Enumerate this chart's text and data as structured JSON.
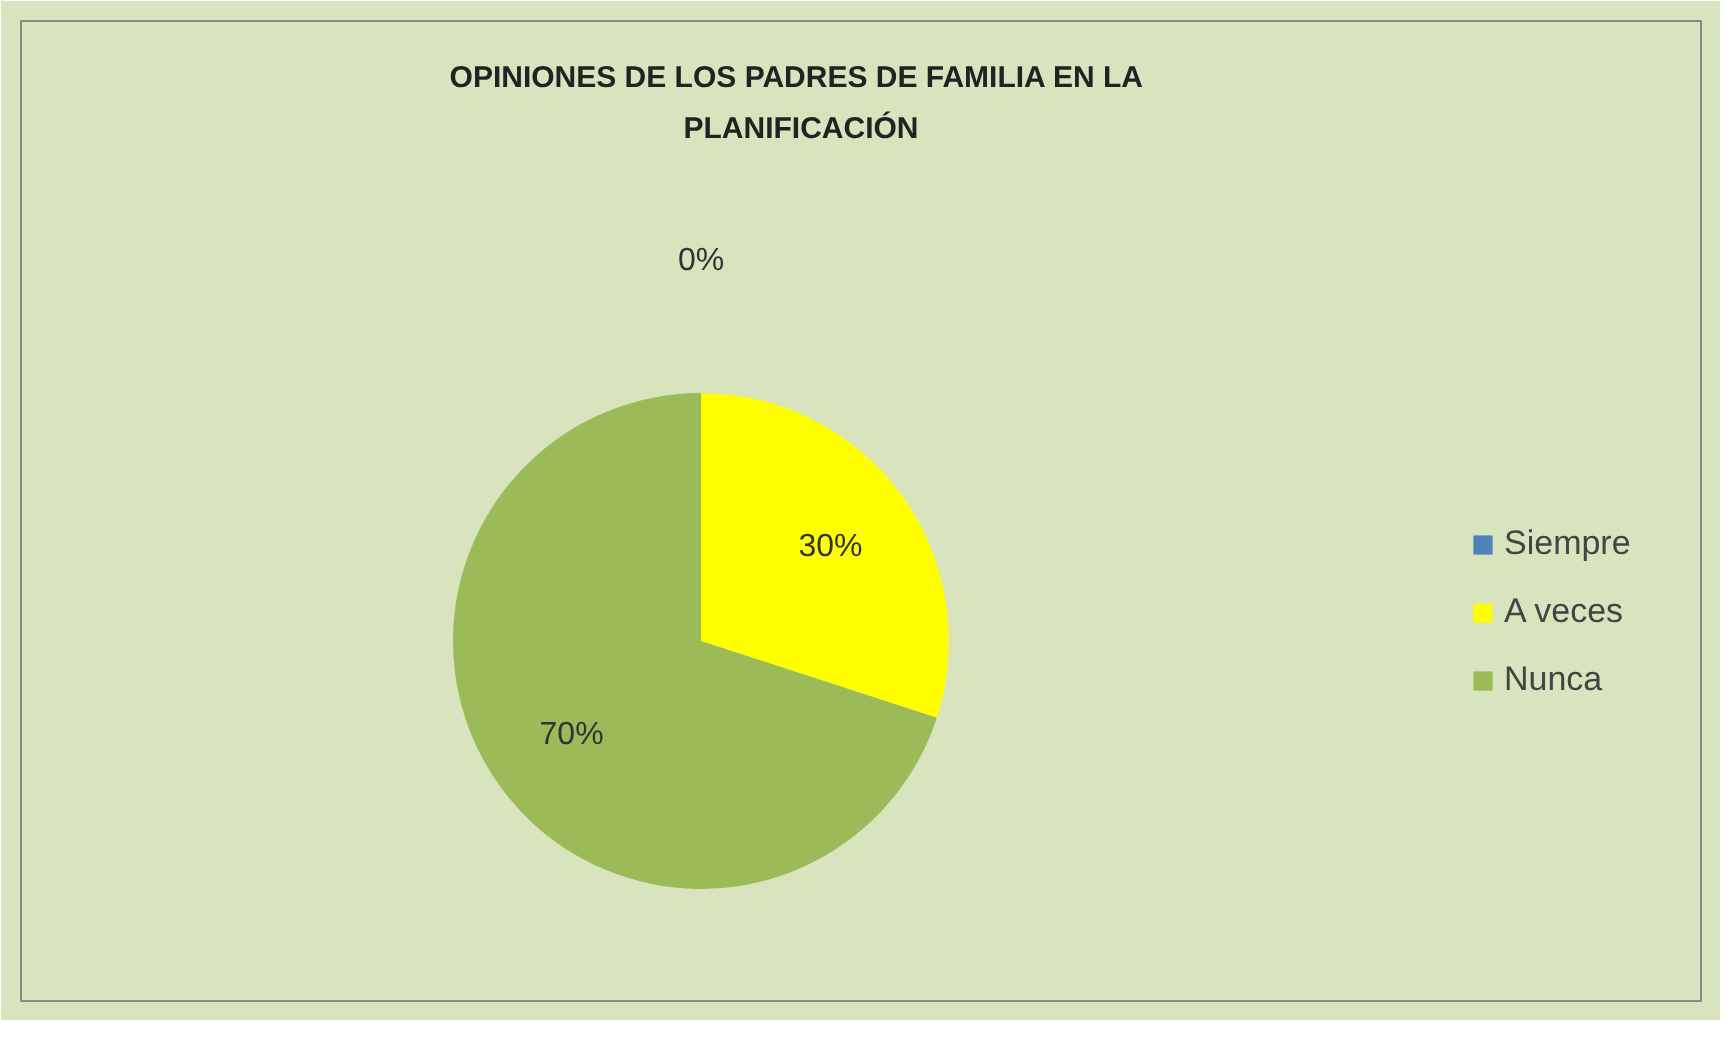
{
  "chart_data": {
    "type": "pie",
    "title": "OPINIONES DE LOS PADRES DE FAMILIA  EN LA PLANIFICACIÓN",
    "categories": [
      "Siempre",
      "A veces",
      "Nunca"
    ],
    "values": [
      0,
      30,
      70
    ],
    "colors": [
      "#4f81bd",
      "#ffff00",
      "#9bbb59"
    ],
    "value_labels": [
      "0%",
      "30%",
      "70%"
    ],
    "legend": "right"
  }
}
